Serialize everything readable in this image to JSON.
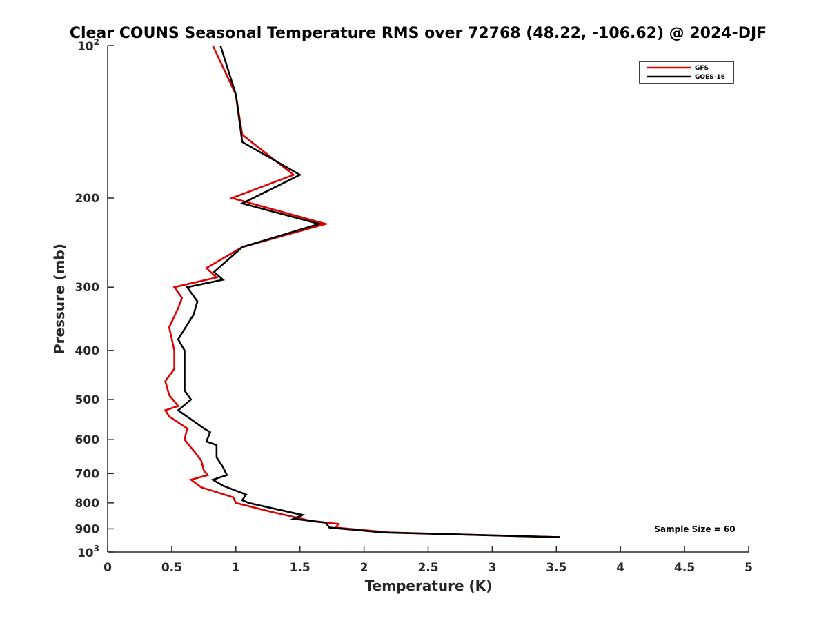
{
  "chart_data": {
    "type": "line",
    "title": "Clear COUNS Seasonal Temperature RMS over 72768 (48.22, -106.62) @ 2024-DJF",
    "xlabel": "Temperature (K)",
    "ylabel": "Pressure (mb)",
    "xlim": [
      0,
      5
    ],
    "ylim": [
      100,
      1000
    ],
    "y_scale": "log",
    "y_reversed": true,
    "grid": false,
    "x_ticks": [
      "0",
      "0.5",
      "1",
      "1.5",
      "2",
      "2.5",
      "3",
      "3.5",
      "4",
      "4.5",
      "5"
    ],
    "y_ticks": [
      {
        "value": 100,
        "base": "10",
        "exp": "2"
      },
      {
        "value": 200,
        "label": "200"
      },
      {
        "value": 300,
        "label": "300"
      },
      {
        "value": 400,
        "label": "400"
      },
      {
        "value": 500,
        "label": "500"
      },
      {
        "value": 600,
        "label": "600"
      },
      {
        "value": 700,
        "label": "700"
      },
      {
        "value": 800,
        "label": "800"
      },
      {
        "value": 900,
        "label": "900"
      },
      {
        "value": 1000,
        "base": "10",
        "exp": "3"
      }
    ],
    "legend": {
      "placement": "top-right"
    },
    "annotation": "Sample Size = 60",
    "series": [
      {
        "name": "GFS",
        "color": "#e00000",
        "points": [
          [
            0.82,
            100
          ],
          [
            1.0,
            125
          ],
          [
            1.05,
            150
          ],
          [
            1.45,
            180
          ],
          [
            0.97,
            200
          ],
          [
            1.7,
            225
          ],
          [
            1.05,
            250
          ],
          [
            0.77,
            275
          ],
          [
            0.85,
            287
          ],
          [
            0.52,
            300
          ],
          [
            0.58,
            315
          ],
          [
            0.55,
            330
          ],
          [
            0.48,
            360
          ],
          [
            0.52,
            400
          ],
          [
            0.52,
            435
          ],
          [
            0.45,
            460
          ],
          [
            0.48,
            490
          ],
          [
            0.55,
            515
          ],
          [
            0.45,
            525
          ],
          [
            0.48,
            540
          ],
          [
            0.62,
            570
          ],
          [
            0.6,
            600
          ],
          [
            0.68,
            635
          ],
          [
            0.73,
            660
          ],
          [
            0.75,
            690
          ],
          [
            0.78,
            705
          ],
          [
            0.65,
            720
          ],
          [
            0.73,
            745
          ],
          [
            0.98,
            780
          ],
          [
            1.0,
            800
          ],
          [
            1.25,
            830
          ],
          [
            1.6,
            870
          ],
          [
            1.8,
            880
          ],
          [
            1.78,
            895
          ],
          [
            2.2,
            915
          ],
          [
            3.53,
            935
          ]
        ]
      },
      {
        "name": "GOES-16",
        "color": "#000000",
        "points": [
          [
            0.88,
            100
          ],
          [
            1.0,
            125
          ],
          [
            1.05,
            155
          ],
          [
            1.5,
            180
          ],
          [
            1.05,
            205
          ],
          [
            1.65,
            225
          ],
          [
            1.05,
            250
          ],
          [
            0.83,
            280
          ],
          [
            0.9,
            290
          ],
          [
            0.62,
            300
          ],
          [
            0.7,
            320
          ],
          [
            0.67,
            340
          ],
          [
            0.55,
            380
          ],
          [
            0.6,
            400
          ],
          [
            0.6,
            440
          ],
          [
            0.6,
            480
          ],
          [
            0.65,
            500
          ],
          [
            0.55,
            525
          ],
          [
            0.75,
            570
          ],
          [
            0.8,
            580
          ],
          [
            0.77,
            605
          ],
          [
            0.85,
            615
          ],
          [
            0.85,
            650
          ],
          [
            0.9,
            680
          ],
          [
            0.93,
            705
          ],
          [
            0.82,
            720
          ],
          [
            0.9,
            740
          ],
          [
            1.08,
            770
          ],
          [
            1.05,
            790
          ],
          [
            1.1,
            800
          ],
          [
            1.52,
            845
          ],
          [
            1.45,
            860
          ],
          [
            1.7,
            875
          ],
          [
            1.73,
            895
          ],
          [
            2.15,
            915
          ],
          [
            3.53,
            935
          ]
        ]
      }
    ]
  }
}
